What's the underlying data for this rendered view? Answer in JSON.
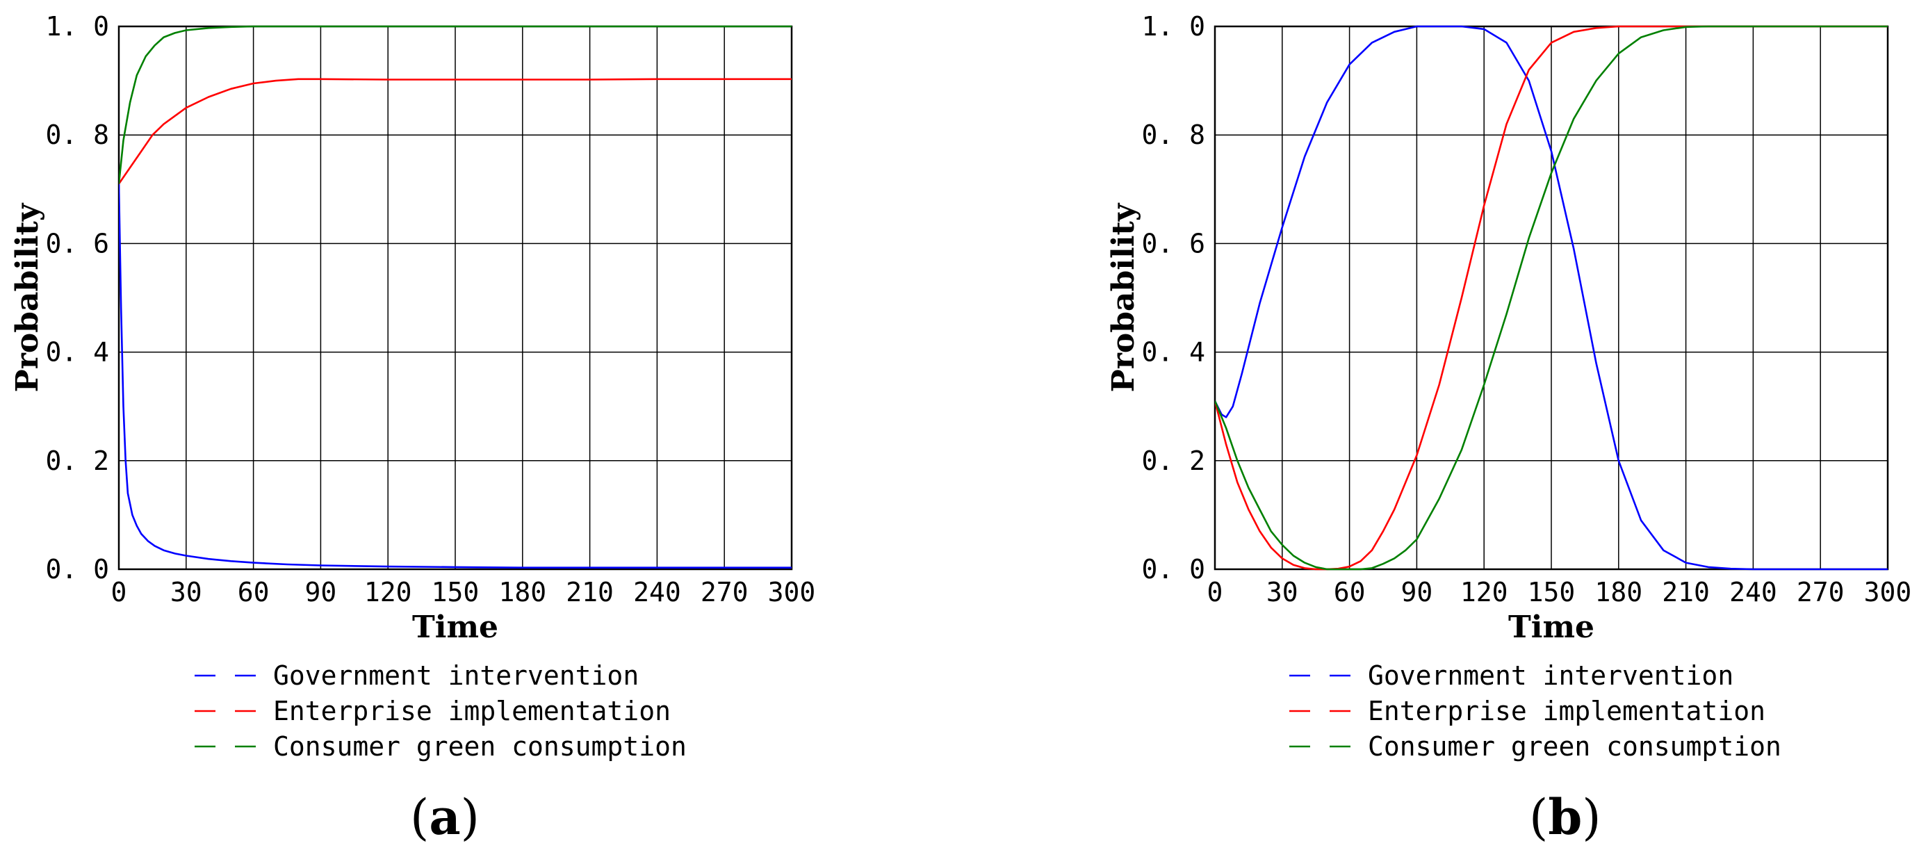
{
  "colors": {
    "government": "#0000ff",
    "enterprise": "#ff0000",
    "consumer": "#008000",
    "grid": "#000000"
  },
  "chart_data": [
    {
      "type": "line",
      "panel_label": "a",
      "xlabel": "Time",
      "ylabel": "Probability",
      "xlim": [
        0,
        300
      ],
      "ylim": [
        0,
        1
      ],
      "x_ticks": [
        "0",
        "30",
        "60",
        "90",
        "120",
        "150",
        "180",
        "210",
        "240",
        "270",
        "300"
      ],
      "y_ticks": [
        "0. 0",
        "0. 2",
        "0. 4",
        "0. 6",
        "0. 8",
        "1. 0"
      ],
      "grid": true,
      "legend_position": "bottom",
      "legend": [
        "Government intervention",
        "Enterprise implementation",
        "Consumer green consumption"
      ],
      "series": [
        {
          "name": "Government intervention",
          "color_key": "government",
          "x": [
            0,
            1,
            2,
            3,
            4,
            6,
            8,
            10,
            13,
            16,
            20,
            25,
            30,
            40,
            50,
            60,
            75,
            90,
            120,
            150,
            180,
            210,
            240,
            270,
            300
          ],
          "y": [
            0.71,
            0.48,
            0.3,
            0.2,
            0.14,
            0.1,
            0.08,
            0.065,
            0.052,
            0.043,
            0.035,
            0.029,
            0.025,
            0.019,
            0.015,
            0.012,
            0.009,
            0.007,
            0.005,
            0.004,
            0.003,
            0.003,
            0.003,
            0.003,
            0.003
          ]
        },
        {
          "name": "Enterprise implementation",
          "color_key": "enterprise",
          "x": [
            0,
            5,
            10,
            15,
            20,
            30,
            40,
            50,
            60,
            70,
            80,
            90,
            120,
            150,
            180,
            210,
            240,
            270,
            300
          ],
          "y": [
            0.71,
            0.74,
            0.77,
            0.8,
            0.82,
            0.85,
            0.87,
            0.885,
            0.895,
            0.9,
            0.903,
            0.903,
            0.902,
            0.902,
            0.902,
            0.902,
            0.903,
            0.903,
            0.903
          ]
        },
        {
          "name": "Consumer green consumption",
          "color_key": "consumer",
          "x": [
            0,
            2,
            5,
            8,
            12,
            16,
            20,
            25,
            30,
            40,
            50,
            60,
            90,
            120,
            150,
            180,
            210,
            240,
            270,
            300
          ],
          "y": [
            0.71,
            0.79,
            0.86,
            0.91,
            0.945,
            0.965,
            0.98,
            0.988,
            0.993,
            0.997,
            0.999,
            1.0,
            1.0,
            1.0,
            1.0,
            1.0,
            1.0,
            1.0,
            1.0,
            1.0
          ]
        }
      ]
    },
    {
      "type": "line",
      "panel_label": "b",
      "xlabel": "Time",
      "ylabel": "Probability",
      "xlim": [
        0,
        300
      ],
      "ylim": [
        0,
        1
      ],
      "x_ticks": [
        "0",
        "30",
        "60",
        "90",
        "120",
        "150",
        "180",
        "210",
        "240",
        "270",
        "300"
      ],
      "y_ticks": [
        "0. 0",
        "0. 2",
        "0. 4",
        "0. 6",
        "0. 8",
        "1. 0"
      ],
      "grid": true,
      "legend_position": "bottom",
      "legend": [
        "Government intervention",
        "Enterprise implementation",
        "Consumer green consumption"
      ],
      "series": [
        {
          "name": "Government intervention",
          "color_key": "government",
          "x": [
            0,
            3,
            5,
            8,
            12,
            20,
            30,
            40,
            50,
            60,
            70,
            80,
            90,
            100,
            110,
            120,
            130,
            140,
            150,
            160,
            170,
            180,
            190,
            200,
            210,
            220,
            230,
            240,
            270,
            300
          ],
          "y": [
            0.31,
            0.285,
            0.28,
            0.3,
            0.36,
            0.49,
            0.63,
            0.76,
            0.86,
            0.93,
            0.97,
            0.99,
            1.0,
            1.0,
            1.0,
            0.995,
            0.97,
            0.9,
            0.77,
            0.59,
            0.38,
            0.2,
            0.09,
            0.035,
            0.012,
            0.004,
            0.001,
            0.0,
            0.0,
            0.0
          ]
        },
        {
          "name": "Enterprise implementation",
          "color_key": "enterprise",
          "x": [
            0,
            5,
            10,
            15,
            20,
            25,
            30,
            35,
            40,
            45,
            50,
            55,
            60,
            65,
            70,
            75,
            80,
            85,
            90,
            100,
            110,
            120,
            130,
            140,
            150,
            160,
            170,
            180,
            190,
            300
          ],
          "y": [
            0.31,
            0.23,
            0.16,
            0.11,
            0.07,
            0.04,
            0.02,
            0.008,
            0.002,
            0.0,
            0.0,
            0.001,
            0.005,
            0.015,
            0.035,
            0.07,
            0.11,
            0.16,
            0.21,
            0.34,
            0.5,
            0.67,
            0.82,
            0.92,
            0.97,
            0.99,
            0.997,
            1.0,
            1.0,
            1.0
          ]
        },
        {
          "name": "Consumer green consumption",
          "color_key": "consumer",
          "x": [
            0,
            5,
            10,
            15,
            20,
            25,
            30,
            35,
            40,
            45,
            50,
            55,
            60,
            65,
            70,
            75,
            80,
            85,
            90,
            100,
            110,
            120,
            130,
            140,
            150,
            160,
            170,
            180,
            190,
            200,
            210,
            220,
            300
          ],
          "y": [
            0.31,
            0.26,
            0.2,
            0.15,
            0.11,
            0.07,
            0.045,
            0.025,
            0.012,
            0.004,
            0.0,
            0.0,
            0.0,
            0.0,
            0.002,
            0.01,
            0.02,
            0.035,
            0.055,
            0.13,
            0.22,
            0.34,
            0.47,
            0.61,
            0.73,
            0.83,
            0.9,
            0.95,
            0.98,
            0.993,
            0.999,
            1.0,
            1.0
          ]
        }
      ]
    }
  ]
}
